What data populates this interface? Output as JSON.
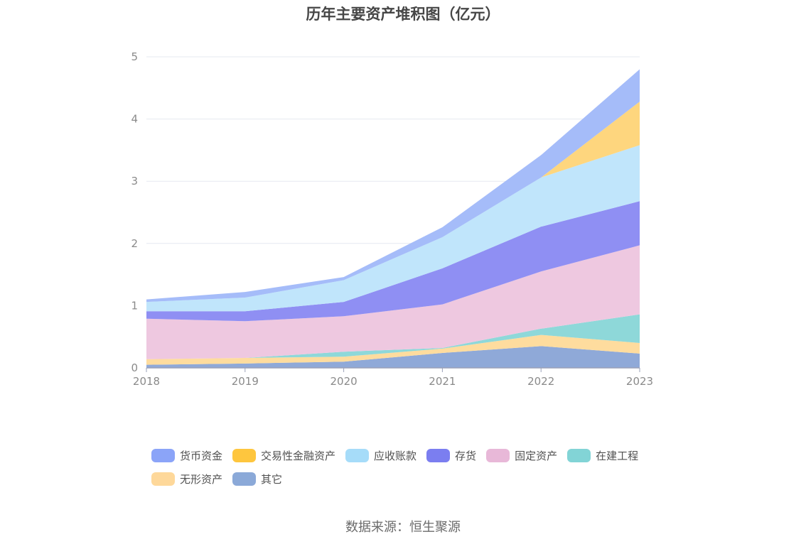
{
  "chart_data": {
    "type": "area",
    "stacked": true,
    "title": "历年主要资产堆积图（亿元）",
    "x": [
      "2018",
      "2019",
      "2020",
      "2021",
      "2022",
      "2023"
    ],
    "ylim": [
      0,
      5
    ],
    "yticks": [
      "0",
      "1",
      "2",
      "3",
      "4",
      "5"
    ],
    "grid": true,
    "legend_position": "bottom",
    "series": [
      {
        "name": "其它",
        "color": "#8fa9d8",
        "values": [
          0.05,
          0.07,
          0.1,
          0.24,
          0.35,
          0.23
        ]
      },
      {
        "name": "无形资产",
        "color": "#fedc9e",
        "values": [
          0.09,
          0.09,
          0.08,
          0.07,
          0.18,
          0.17
        ]
      },
      {
        "name": "在建工程",
        "color": "#8ed8d9",
        "values": [
          0.0,
          0.0,
          0.08,
          0.01,
          0.1,
          0.46
        ]
      },
      {
        "name": "固定资产",
        "color": "#eec8e0",
        "values": [
          0.65,
          0.59,
          0.57,
          0.7,
          0.92,
          1.11
        ]
      },
      {
        "name": "存货",
        "color": "#8f8ff3",
        "values": [
          0.12,
          0.16,
          0.23,
          0.58,
          0.72,
          0.71
        ]
      },
      {
        "name": "应收账款",
        "color": "#c0e5fb",
        "values": [
          0.15,
          0.22,
          0.35,
          0.5,
          0.79,
          0.9
        ]
      },
      {
        "name": "交易性金融资产",
        "color": "#fed67e",
        "values": [
          0.0,
          0.0,
          0.0,
          0.0,
          0.0,
          0.7
        ]
      },
      {
        "name": "货币资金",
        "color": "#a5bcf9",
        "values": [
          0.04,
          0.09,
          0.05,
          0.16,
          0.36,
          0.52
        ]
      }
    ]
  },
  "legend": [
    {
      "label": "货币资金",
      "color": "#8ba4f8"
    },
    {
      "label": "交易性金融资产",
      "color": "#fec63e"
    },
    {
      "label": "应收账款",
      "color": "#a6dcf9"
    },
    {
      "label": "存货",
      "color": "#7b7ef0"
    },
    {
      "label": "固定资产",
      "color": "#e8b8d8"
    },
    {
      "label": "在建工程",
      "color": "#82d4d6"
    },
    {
      "label": "无形资产",
      "color": "#fed89a"
    },
    {
      "label": "其它",
      "color": "#8ba9d8"
    }
  ],
  "source": "数据来源：恒生聚源"
}
